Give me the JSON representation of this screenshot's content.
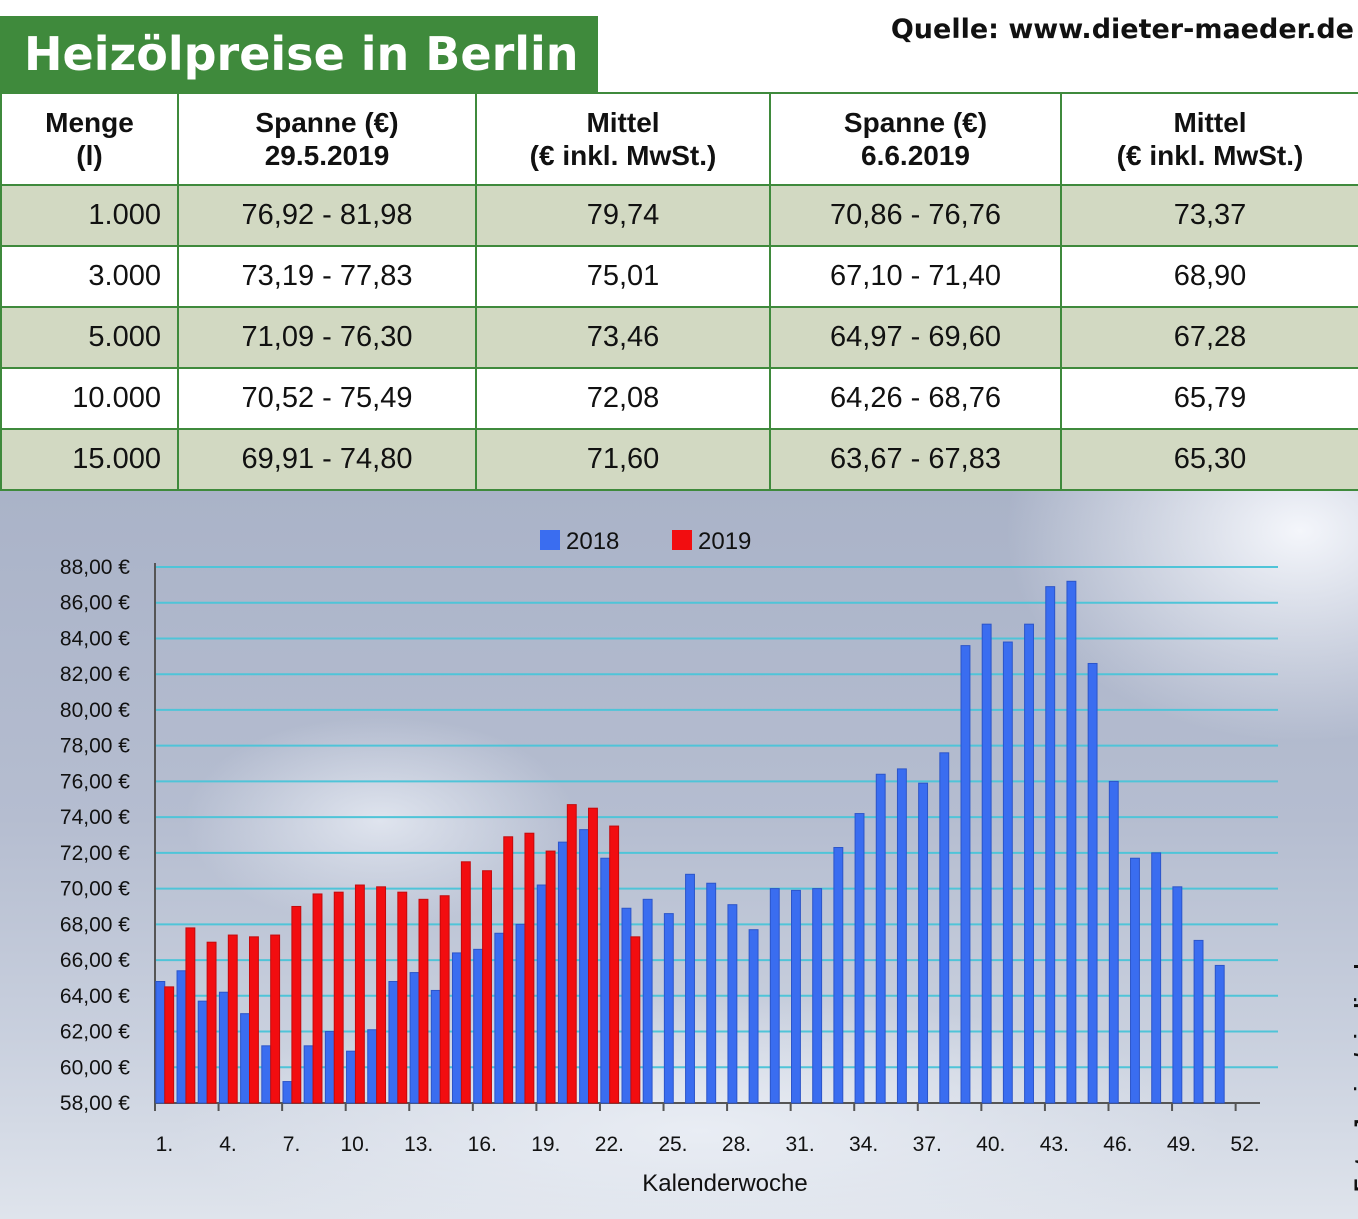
{
  "title": "Heizölpreise in Berlin",
  "source": "Quelle: www.dieter-maeder.de",
  "photo_credit": "Foto: Joujou/pixelio.de",
  "table": {
    "headers": [
      {
        "line1": "Menge",
        "line2": "(l)"
      },
      {
        "line1": "Spanne (€)",
        "line2": "29.5.2019"
      },
      {
        "line1": "Mittel",
        "line2": "(€ inkl. MwSt.)"
      },
      {
        "line1": "Spanne (€)",
        "line2": "6.6.2019"
      },
      {
        "line1": "Mittel",
        "line2": "(€ inkl. MwSt.)"
      }
    ],
    "rows": [
      [
        "1.000",
        "76,92 - 81,98",
        "79,74",
        "70,86 - 76,76",
        "73,37"
      ],
      [
        "3.000",
        "73,19 - 77,83",
        "75,01",
        "67,10 - 71,40",
        "68,90"
      ],
      [
        "5.000",
        "71,09 - 76,30",
        "73,46",
        "64,97 - 69,60",
        "67,28"
      ],
      [
        "10.000",
        "70,52 - 75,49",
        "72,08",
        "64,26 - 68,76",
        "65,79"
      ],
      [
        "15.000",
        "69,91 - 74,80",
        "71,60",
        "63,67 - 67,83",
        "65,30"
      ]
    ],
    "border_color": "#3f8a3c",
    "shade_color": "#d2d9c2"
  },
  "chart_data": {
    "type": "bar",
    "xlabel": "Kalenderwoche",
    "ylabel": "",
    "ylim": [
      58,
      88
    ],
    "y_ticks": [
      "58,00 €",
      "60,00 €",
      "62,00 €",
      "64,00 €",
      "66,00 €",
      "68,00 €",
      "70,00 €",
      "72,00 €",
      "74,00 €",
      "76,00 €",
      "78,00 €",
      "80,00 €",
      "82,00 €",
      "84,00 €",
      "86,00 €",
      "88,00 €"
    ],
    "x_ticks": [
      "1.",
      "4.",
      "7.",
      "10.",
      "13.",
      "16.",
      "19.",
      "22.",
      "25.",
      "28.",
      "31.",
      "34.",
      "37.",
      "40.",
      "43.",
      "46.",
      "49.",
      "52."
    ],
    "grid": true,
    "legend_position": "top-center",
    "series": [
      {
        "name": "2018",
        "color": "#3a6df0",
        "x": [
          1,
          2,
          3,
          4,
          5,
          6,
          7,
          8,
          9,
          10,
          11,
          12,
          13,
          14,
          15,
          16,
          17,
          18,
          19,
          20,
          21,
          22,
          23,
          24,
          25,
          26,
          27,
          28,
          29,
          30,
          31,
          32,
          33,
          34,
          35,
          36,
          37,
          38,
          39,
          40,
          41,
          42,
          43,
          44,
          45,
          46,
          47,
          48,
          49,
          50,
          51
        ],
        "values": [
          64.8,
          65.4,
          63.7,
          64.2,
          63.0,
          61.2,
          59.2,
          61.2,
          62.0,
          60.9,
          62.1,
          64.8,
          65.3,
          64.3,
          66.4,
          66.6,
          67.5,
          68.0,
          70.2,
          72.6,
          73.3,
          71.7,
          68.9,
          69.4,
          68.6,
          70.8,
          70.3,
          69.1,
          67.7,
          70.0,
          69.9,
          70.0,
          72.3,
          74.2,
          76.4,
          76.7,
          75.9,
          77.6,
          83.6,
          84.8,
          83.8,
          84.8,
          86.9,
          87.2,
          82.6,
          76.0,
          71.7,
          72.0,
          70.1,
          67.1,
          65.7
        ]
      },
      {
        "name": "2019",
        "color": "#f20d10",
        "x": [
          1,
          2,
          3,
          4,
          5,
          6,
          7,
          8,
          9,
          10,
          11,
          12,
          13,
          14,
          15,
          16,
          17,
          18,
          19,
          20,
          21,
          22,
          23
        ],
        "values": [
          64.5,
          67.8,
          67.0,
          67.4,
          67.3,
          67.4,
          69.0,
          69.7,
          69.8,
          70.2,
          70.1,
          69.8,
          69.4,
          69.6,
          71.5,
          71.0,
          72.9,
          73.1,
          72.1,
          74.7,
          74.5,
          73.5,
          67.3
        ]
      }
    ]
  }
}
